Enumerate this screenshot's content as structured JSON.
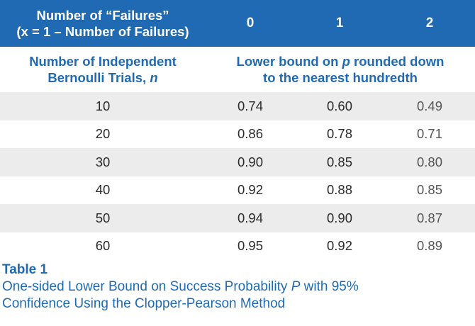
{
  "table": {
    "header": {
      "lead_line1": "Number of “Failures”",
      "lead_line2": "(x = 1 – Number of Failures)",
      "columns": [
        "0",
        "1",
        "2"
      ]
    },
    "subheader": {
      "lead_line1": "Number of Independent",
      "lead_line2_prefix": "Bernoulli Trials, ",
      "lead_line2_var": "n",
      "span_line1_prefix": "Lower bound on ",
      "span_line1_var": "p",
      "span_line1_suffix": " rounded down",
      "span_line2": "to the nearest hundredth"
    },
    "rows": [
      {
        "n": "10",
        "v0": "0.74",
        "v1": "0.60",
        "v2": "0.49"
      },
      {
        "n": "20",
        "v0": "0.86",
        "v1": "0.78",
        "v2": "0.71"
      },
      {
        "n": "30",
        "v0": "0.90",
        "v1": "0.85",
        "v2": "0.80"
      },
      {
        "n": "40",
        "v0": "0.92",
        "v1": "0.88",
        "v2": "0.85"
      },
      {
        "n": "50",
        "v0": "0.94",
        "v1": "0.90",
        "v2": "0.87"
      },
      {
        "n": "60",
        "v0": "0.95",
        "v1": "0.92",
        "v2": "0.89"
      }
    ]
  },
  "caption": {
    "title": "Table 1",
    "line1_prefix": "One-sided Lower Bound on Success Probability ",
    "line1_var": "P",
    "line1_suffix": " with 95%",
    "line2": "Confidence Using the Clopper-Pearson Method"
  },
  "colors": {
    "brand_blue": "#1f6ab3",
    "row_shade": "#ececec"
  }
}
